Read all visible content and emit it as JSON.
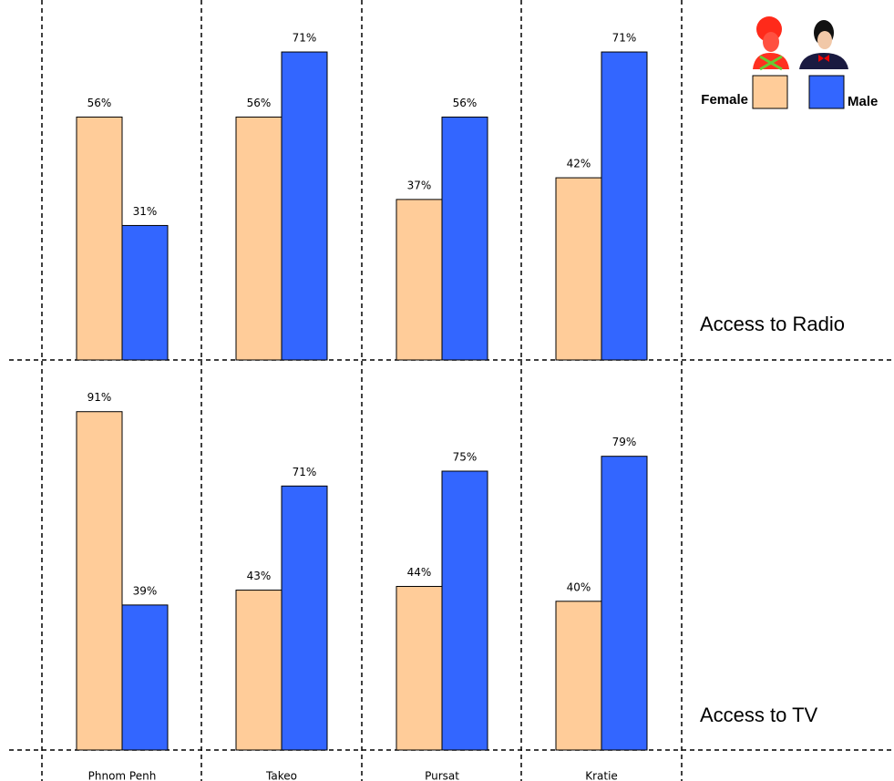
{
  "chart_data": [
    {
      "type": "bar",
      "title": "Access to Radio",
      "categories": [
        null,
        null,
        null,
        null
      ],
      "series": [
        {
          "name": "Female",
          "color": "#FFCC99",
          "values": [
            56,
            56,
            37,
            42
          ],
          "value_labels": [
            "56%",
            "56%",
            "37%",
            "42%"
          ]
        },
        {
          "name": "Male",
          "color": "#3366FF",
          "values": [
            31,
            71,
            56,
            71
          ],
          "value_labels": [
            "31%",
            "71%",
            "56%",
            "71%"
          ]
        }
      ]
    },
    {
      "type": "bar",
      "title": "Access to TV",
      "categories": [
        "Phnom Penh",
        "Takeo",
        "Pursat",
        "Kratie"
      ],
      "series": [
        {
          "color": "#FFCC99",
          "values": [
            91,
            43,
            44,
            40
          ],
          "value_labels": [
            "91%",
            "43%",
            "44%",
            "40%"
          ]
        },
        {
          "color": "#3366FF",
          "values": [
            39,
            71,
            75,
            79
          ],
          "value_labels": [
            "39%",
            "71%",
            "75%",
            "79%"
          ]
        }
      ]
    }
  ]
}
